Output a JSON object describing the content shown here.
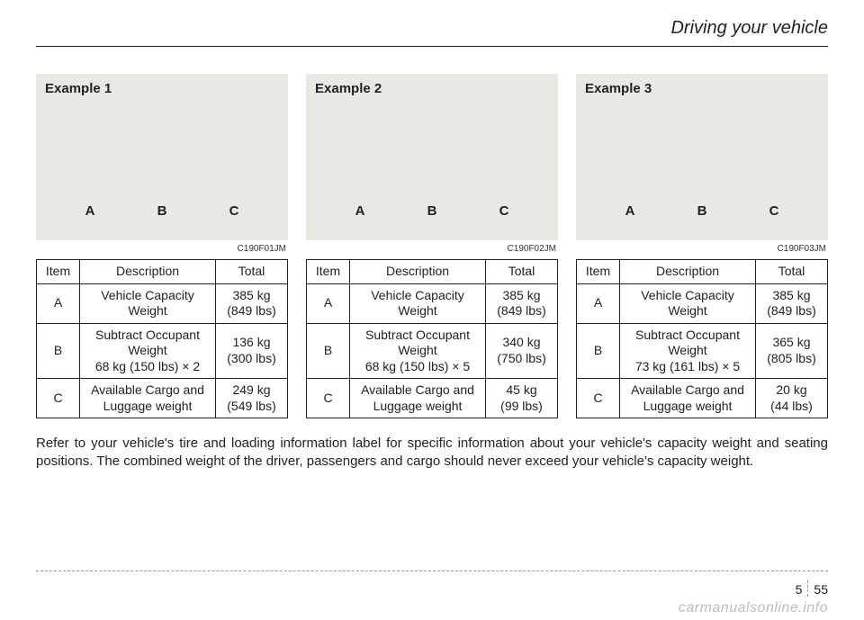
{
  "header": {
    "title": "Driving your vehicle"
  },
  "abc": {
    "a": "A",
    "b": "B",
    "c": "C"
  },
  "table_headers": {
    "item": "Item",
    "desc": "Description",
    "total": "Total"
  },
  "examples": [
    {
      "title": "Example 1",
      "code": "C190F01JM",
      "rows": [
        {
          "item": "A",
          "desc": "Vehicle Capacity\nWeight",
          "total": "385 kg\n(849 lbs)"
        },
        {
          "item": "B",
          "desc": "Subtract Occupant\nWeight\n68 kg (150 lbs) × 2",
          "total": "136 kg\n(300 lbs)"
        },
        {
          "item": "C",
          "desc": "Available Cargo and\nLuggage weight",
          "total": "249 kg\n(549 lbs)"
        }
      ]
    },
    {
      "title": "Example 2",
      "code": "C190F02JM",
      "rows": [
        {
          "item": "A",
          "desc": "Vehicle Capacity\nWeight",
          "total": "385 kg\n(849 lbs)"
        },
        {
          "item": "B",
          "desc": "Subtract Occupant\nWeight\n68 kg (150 lbs) × 5",
          "total": "340 kg\n(750 lbs)"
        },
        {
          "item": "C",
          "desc": "Available Cargo and\nLuggage weight",
          "total": "45 kg\n(99 lbs)"
        }
      ]
    },
    {
      "title": "Example 3",
      "code": "C190F03JM",
      "rows": [
        {
          "item": "A",
          "desc": "Vehicle Capacity\nWeight",
          "total": "385 kg\n(849 lbs)"
        },
        {
          "item": "B",
          "desc": "Subtract Occupant\nWeight\n73 kg (161 lbs) × 5",
          "total": "365 kg\n(805 lbs)"
        },
        {
          "item": "C",
          "desc": "Available Cargo and\nLuggage weight",
          "total": "20 kg\n(44 lbs)"
        }
      ]
    }
  ],
  "body_text": "Refer to your vehicle's tire and loading information label for specific information about your vehicle's capacity weight and seating positions. The combined weight of the driver, passengers and cargo should never exceed your vehicle's capacity weight.",
  "page": {
    "chapter": "5",
    "num": "55"
  },
  "watermark": "carmanualsonline.info"
}
